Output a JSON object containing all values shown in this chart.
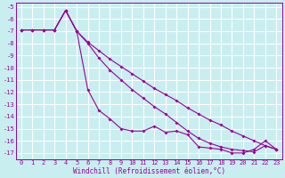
{
  "x": [
    0,
    1,
    2,
    3,
    4,
    5,
    6,
    7,
    8,
    9,
    10,
    11,
    12,
    13,
    14,
    15,
    16,
    17,
    18,
    19,
    20,
    21,
    22,
    23
  ],
  "line1": [
    -6.9,
    -6.9,
    -6.9,
    -6.9,
    -5.3,
    -7.0,
    -8.0,
    -9.2,
    -10.2,
    -11.0,
    -11.8,
    -12.5,
    -13.2,
    -13.8,
    -14.5,
    -15.2,
    -15.8,
    -16.2,
    -16.5,
    -16.7,
    -16.8,
    -16.9,
    -16.4,
    -16.7
  ],
  "line2": [
    -6.9,
    -6.9,
    -6.9,
    -6.9,
    -5.3,
    -7.0,
    -11.8,
    -13.5,
    -14.2,
    -15.0,
    -15.2,
    -15.2,
    -14.8,
    -15.3,
    -15.2,
    -15.5,
    -16.5,
    -16.6,
    -16.7,
    -17.0,
    -17.0,
    -16.7,
    -16.0,
    -16.7
  ],
  "line3": [
    -6.9,
    -6.9,
    -6.9,
    -6.9,
    -5.3,
    -7.0,
    -7.9,
    -8.6,
    -9.3,
    -9.9,
    -10.5,
    -11.1,
    -11.7,
    -12.2,
    -12.7,
    -13.3,
    -13.8,
    -14.3,
    -14.7,
    -15.2,
    -15.6,
    -16.0,
    -16.4,
    -16.7
  ],
  "xlim_min": -0.5,
  "xlim_max": 23.5,
  "ylim_min": -17.5,
  "ylim_max": -4.7,
  "xlabel": "Windchill (Refroidissement éolien,°C)",
  "color": "#990099",
  "bg_color": "#c8eef0",
  "grid_color": "#ffffff",
  "xticks": [
    0,
    1,
    2,
    3,
    4,
    5,
    6,
    7,
    8,
    9,
    10,
    11,
    12,
    13,
    14,
    15,
    16,
    17,
    18,
    19,
    20,
    21,
    22,
    23
  ],
  "yticks": [
    -17,
    -16,
    -15,
    -14,
    -13,
    -12,
    -11,
    -10,
    -9,
    -8,
    -7,
    -6,
    -5
  ],
  "marker": "D",
  "markersize": 2.0,
  "linewidth": 0.8,
  "tick_fontsize": 5.0,
  "xlabel_fontsize": 5.5
}
